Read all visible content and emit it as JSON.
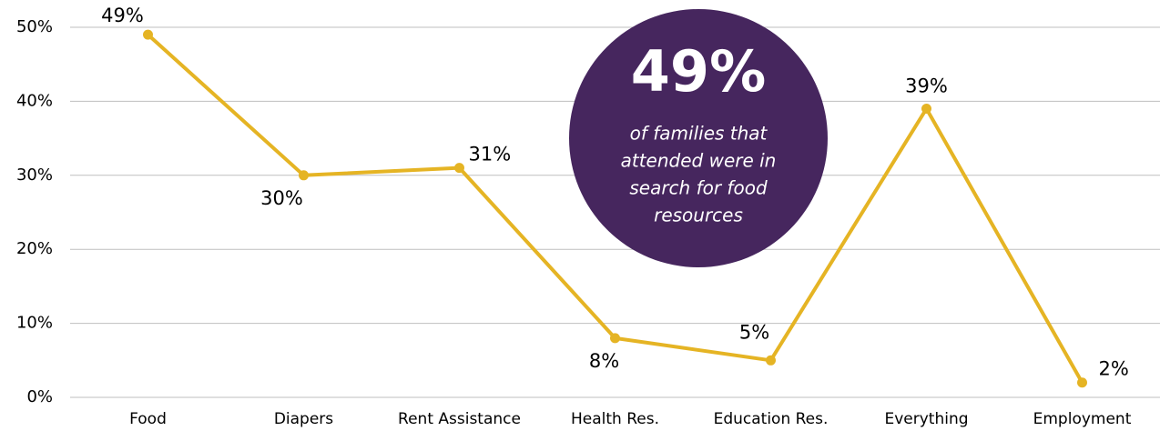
{
  "chart_data": {
    "type": "line",
    "categories": [
      "Food",
      "Diapers",
      "Rent Assistance",
      "Health Res.",
      "Education Res.",
      "Everything",
      "Employment"
    ],
    "values": [
      49,
      30,
      31,
      8,
      5,
      39,
      2
    ],
    "value_labels": [
      "49%",
      "30%",
      "31%",
      "8%",
      "5%",
      "39%",
      "2%"
    ],
    "color": "#e5b424",
    "ylim": [
      0,
      50
    ],
    "yticks": [
      {
        "value": 0,
        "label": "0%"
      },
      {
        "value": 10,
        "label": "10%"
      },
      {
        "value": 20,
        "label": "20%"
      },
      {
        "value": 30,
        "label": "30%"
      },
      {
        "value": 40,
        "label": "40%"
      },
      {
        "value": 50,
        "label": "50%"
      }
    ],
    "grid": true,
    "callout": {
      "headline": "49%",
      "lines": [
        "of families that",
        "attended were in",
        "search for food",
        "resources"
      ],
      "color": "#46265e"
    }
  }
}
